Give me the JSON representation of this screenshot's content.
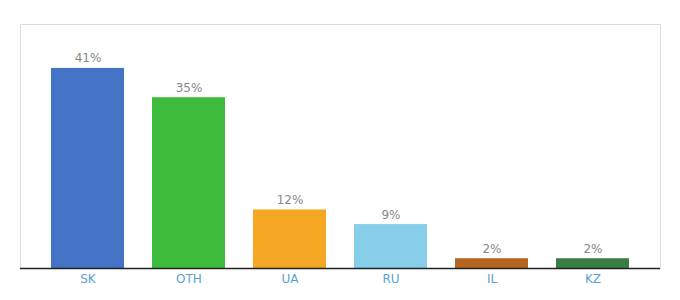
{
  "chart_data": {
    "type": "bar",
    "categories": [
      "SK",
      "OTH",
      "UA",
      "RU",
      "IL",
      "KZ"
    ],
    "values": [
      41,
      35,
      12,
      9,
      2,
      2
    ],
    "value_labels": [
      "41%",
      "35%",
      "12%",
      "9%",
      "2%",
      "2%"
    ],
    "colors": [
      "#4472c4",
      "#3dbb3d",
      "#f5a623",
      "#87ceeb",
      "#b5651d",
      "#3a7d44"
    ],
    "ylim": [
      0,
      50
    ],
    "data_labels": true,
    "tick_labels": "x",
    "grid": false
  }
}
